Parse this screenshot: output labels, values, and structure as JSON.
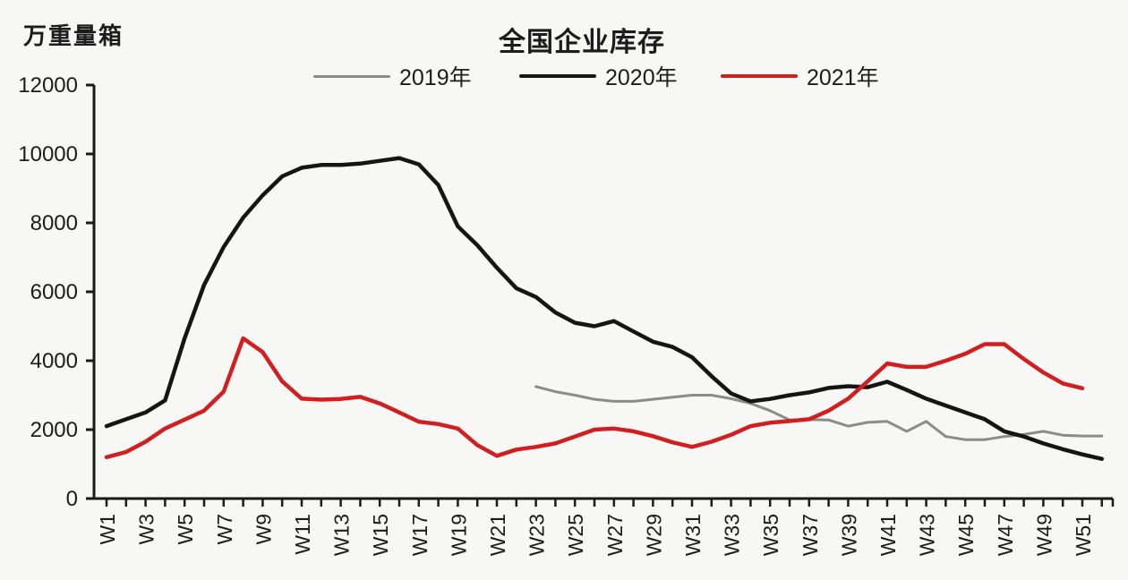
{
  "header": {
    "unit_label": "万重量箱",
    "title": "全国企业库存"
  },
  "legend": {
    "items": [
      {
        "label": "2019年"
      },
      {
        "label": "2020年"
      },
      {
        "label": "2021年"
      }
    ]
  },
  "chart_data": {
    "type": "line",
    "title": "全国企业库存",
    "ylabel": "万重量箱",
    "xlabel": "",
    "ylim": [
      0,
      12000
    ],
    "ytick_step": 2000,
    "ytick_labels": [
      "0",
      "2000",
      "4000",
      "6000",
      "8000",
      "10000",
      "12000"
    ],
    "weeks_total": 52,
    "xtick_labels_odd_weeks": [
      "W1",
      "W3",
      "W5",
      "W7",
      "W9",
      "W11",
      "W13",
      "W15",
      "W17",
      "W19",
      "W21",
      "W23",
      "W25",
      "W27",
      "W29",
      "W31",
      "W33",
      "W35",
      "W37",
      "W39",
      "W41",
      "W43",
      "W45",
      "W47",
      "W49",
      "W51"
    ],
    "grid": false,
    "legend_position": "top",
    "background_color": "#f7f7f6",
    "axis_color": "#1a1a1a",
    "text_color": "#1c1c1c",
    "series": [
      {
        "name": "2019年",
        "color": "#8b8b8b",
        "line_width": 3,
        "start_week": 23,
        "values": [
          3250,
          3100,
          3000,
          2880,
          2820,
          2820,
          2880,
          2940,
          3000,
          3000,
          2900,
          2760,
          2550,
          2280,
          2290,
          2280,
          2100,
          2210,
          2240,
          1950,
          2240,
          1800,
          1710,
          1710,
          1800,
          1860,
          1950,
          1840,
          1815,
          1815
        ]
      },
      {
        "name": "2020年",
        "color": "#151515",
        "line_width": 4.5,
        "start_week": 1,
        "values": [
          2100,
          2300,
          2500,
          2850,
          4650,
          6200,
          7300,
          8150,
          8800,
          9350,
          9600,
          9680,
          9680,
          9720,
          9800,
          9880,
          9700,
          9100,
          7900,
          7350,
          6700,
          6100,
          5850,
          5400,
          5100,
          5000,
          5150,
          4850,
          4550,
          4400,
          4100,
          3550,
          3050,
          2820,
          2890,
          3000,
          3080,
          3210,
          3260,
          3230,
          3390,
          3150,
          2900,
          2700,
          2500,
          2300,
          1950,
          1800,
          1600,
          1430,
          1280,
          1150
        ]
      },
      {
        "name": "2021年",
        "color": "#d11f1f",
        "line_width": 4.5,
        "start_week": 1,
        "values": [
          1200,
          1350,
          1650,
          2030,
          2290,
          2550,
          3100,
          4650,
          4250,
          3400,
          2900,
          2870,
          2890,
          2950,
          2760,
          2500,
          2230,
          2160,
          2030,
          1550,
          1240,
          1420,
          1500,
          1600,
          1800,
          2000,
          2030,
          1950,
          1810,
          1630,
          1500,
          1650,
          1850,
          2100,
          2200,
          2250,
          2300,
          2550,
          2900,
          3400,
          3920,
          3820,
          3820,
          4000,
          4200,
          4480,
          4480,
          4050,
          3660,
          3340,
          3200
        ]
      }
    ]
  }
}
